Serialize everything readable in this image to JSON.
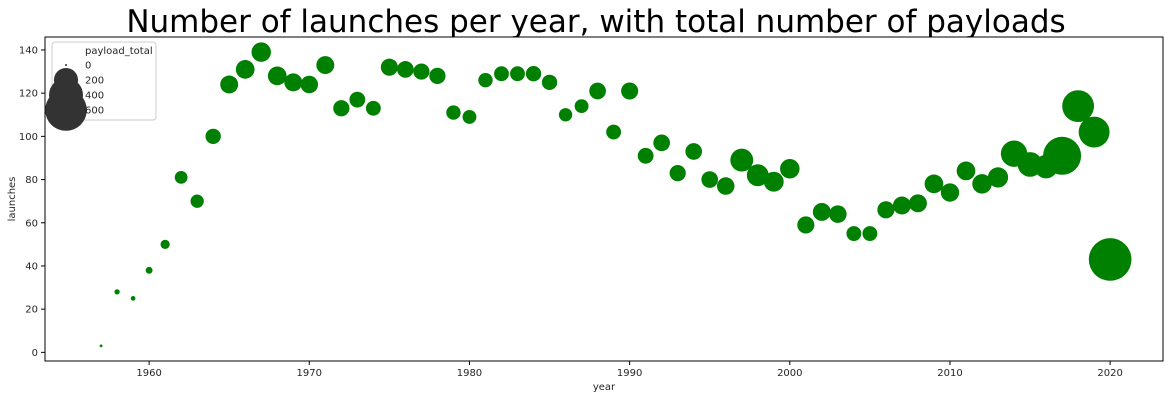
{
  "chart_data": {
    "type": "scatter",
    "title": "Number of launches per year, with total number of payloads",
    "xlabel": "year",
    "ylabel": "launches",
    "xlim": [
      1953.5,
      2023.3
    ],
    "ylim": [
      -4,
      146
    ],
    "xticks": [
      1960,
      1970,
      1980,
      1990,
      2000,
      2010,
      2020
    ],
    "yticks": [
      0,
      20,
      40,
      60,
      80,
      100,
      120,
      140
    ],
    "grid": false,
    "point_color": "#008000",
    "legend": {
      "title": "payload_total",
      "placement": "top-left",
      "entries": [
        {
          "label": "0",
          "size": 0
        },
        {
          "label": "200",
          "size": 200
        },
        {
          "label": "400",
          "size": 400
        },
        {
          "label": "600",
          "size": 600
        }
      ],
      "marker_color": "#333333"
    },
    "x": [
      1957,
      1958,
      1959,
      1960,
      1961,
      1962,
      1963,
      1964,
      1965,
      1966,
      1967,
      1968,
      1969,
      1970,
      1971,
      1972,
      1973,
      1974,
      1975,
      1976,
      1977,
      1978,
      1979,
      1980,
      1981,
      1982,
      1983,
      1984,
      1985,
      1986,
      1987,
      1988,
      1989,
      1990,
      1991,
      1992,
      1993,
      1994,
      1995,
      1996,
      1997,
      1998,
      1999,
      2000,
      2001,
      2002,
      2003,
      2004,
      2005,
      2006,
      2007,
      2008,
      2009,
      2010,
      2011,
      2012,
      2013,
      2014,
      2015,
      2016,
      2017,
      2018,
      2019,
      2020
    ],
    "launches": [
      3,
      28,
      25,
      38,
      50,
      81,
      70,
      100,
      124,
      131,
      139,
      128,
      125,
      124,
      133,
      113,
      117,
      113,
      132,
      131,
      130,
      128,
      111,
      109,
      126,
      129,
      129,
      129,
      125,
      110,
      114,
      121,
      102,
      121,
      91,
      97,
      83,
      93,
      80,
      77,
      89,
      82,
      79,
      85,
      59,
      65,
      64,
      55,
      55,
      66,
      68,
      69,
      78,
      74,
      84,
      78,
      81,
      92,
      87,
      86,
      91,
      114,
      102,
      43
    ],
    "payload_total": [
      1,
      8,
      6,
      15,
      28,
      55,
      60,
      80,
      110,
      120,
      130,
      120,
      110,
      105,
      110,
      90,
      85,
      75,
      100,
      95,
      90,
      90,
      70,
      65,
      70,
      75,
      75,
      80,
      80,
      60,
      65,
      95,
      75,
      100,
      85,
      95,
      90,
      95,
      95,
      105,
      180,
      165,
      135,
      130,
      100,
      110,
      105,
      75,
      75,
      100,
      110,
      110,
      120,
      115,
      120,
      130,
      140,
      240,
      210,
      190,
      500,
      350,
      330,
      630
    ]
  }
}
